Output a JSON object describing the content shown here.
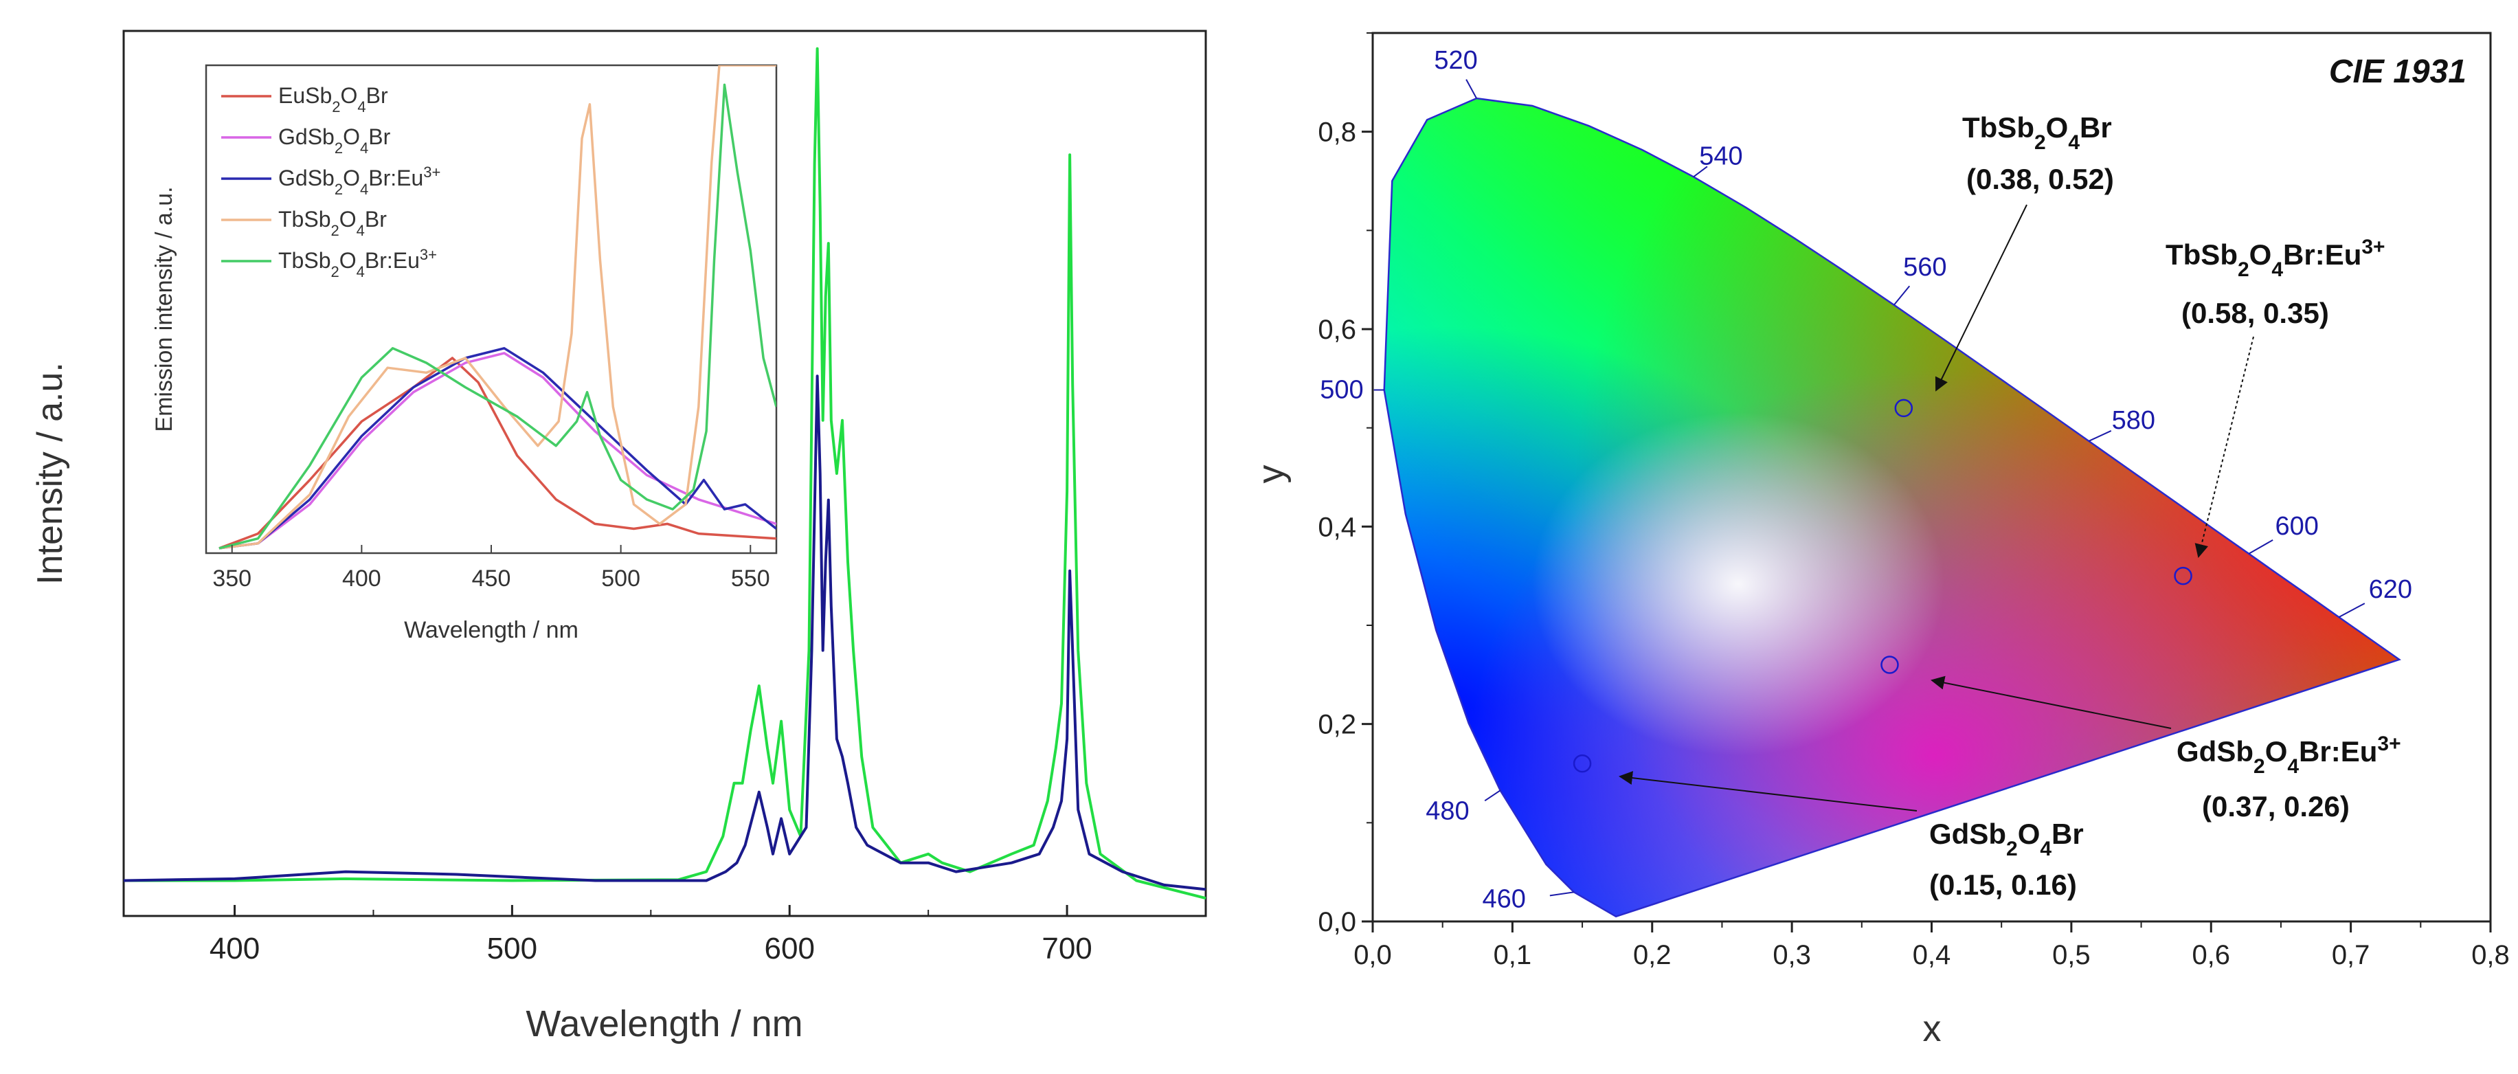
{
  "chart_data": [
    {
      "type": "line",
      "title": "",
      "xlabel": "Wavelength / nm",
      "ylabel": "Intensity / a.u.",
      "xlim": [
        360,
        750
      ],
      "ylim": [
        0,
        1.0
      ],
      "xticks": [
        "400",
        "500",
        "600",
        "700"
      ],
      "series": [
        {
          "name": "TbSb2O4Br:Eu3+ (main)",
          "color": "#22dd44",
          "points": [
            [
              360,
              0.04
            ],
            [
              400,
              0.04
            ],
            [
              440,
              0.042
            ],
            [
              500,
              0.04
            ],
            [
              560,
              0.041
            ],
            [
              570,
              0.05
            ],
            [
              576,
              0.09
            ],
            [
              580,
              0.15
            ],
            [
              583,
              0.15
            ],
            [
              586,
              0.21
            ],
            [
              589,
              0.26
            ],
            [
              592,
              0.19
            ],
            [
              594,
              0.15
            ],
            [
              597,
              0.22
            ],
            [
              600,
              0.12
            ],
            [
              604,
              0.09
            ],
            [
              607,
              0.3
            ],
            [
              609,
              0.85
            ],
            [
              610,
              0.98
            ],
            [
              611,
              0.8
            ],
            [
              612,
              0.56
            ],
            [
              613,
              0.7
            ],
            [
              614,
              0.76
            ],
            [
              615,
              0.56
            ],
            [
              617,
              0.5
            ],
            [
              619,
              0.56
            ],
            [
              621,
              0.4
            ],
            [
              623,
              0.3
            ],
            [
              626,
              0.18
            ],
            [
              630,
              0.1
            ],
            [
              640,
              0.06
            ],
            [
              650,
              0.07
            ],
            [
              655,
              0.06
            ],
            [
              665,
              0.05
            ],
            [
              680,
              0.07
            ],
            [
              688,
              0.08
            ],
            [
              693,
              0.13
            ],
            [
              696,
              0.19
            ],
            [
              698,
              0.24
            ],
            [
              700,
              0.48
            ],
            [
              701,
              0.86
            ],
            [
              702,
              0.6
            ],
            [
              704,
              0.3
            ],
            [
              707,
              0.15
            ],
            [
              712,
              0.07
            ],
            [
              725,
              0.04
            ],
            [
              750,
              0.02
            ]
          ]
        },
        {
          "name": "GdSb2O4Br:Eu3+ (main)",
          "color": "#1a1a8c",
          "points": [
            [
              360,
              0.04
            ],
            [
              400,
              0.042
            ],
            [
              440,
              0.05
            ],
            [
              480,
              0.047
            ],
            [
              530,
              0.04
            ],
            [
              570,
              0.04
            ],
            [
              577,
              0.05
            ],
            [
              581,
              0.06
            ],
            [
              584,
              0.08
            ],
            [
              589,
              0.14
            ],
            [
              592,
              0.1
            ],
            [
              594,
              0.07
            ],
            [
              597,
              0.11
            ],
            [
              600,
              0.07
            ],
            [
              606,
              0.1
            ],
            [
              608,
              0.3
            ],
            [
              610,
              0.61
            ],
            [
              611,
              0.5
            ],
            [
              612,
              0.3
            ],
            [
              613,
              0.4
            ],
            [
              614,
              0.47
            ],
            [
              615,
              0.35
            ],
            [
              617,
              0.2
            ],
            [
              619,
              0.18
            ],
            [
              621,
              0.15
            ],
            [
              624,
              0.1
            ],
            [
              628,
              0.08
            ],
            [
              640,
              0.06
            ],
            [
              650,
              0.06
            ],
            [
              660,
              0.05
            ],
            [
              680,
              0.06
            ],
            [
              690,
              0.07
            ],
            [
              695,
              0.1
            ],
            [
              698,
              0.13
            ],
            [
              700,
              0.2
            ],
            [
              701,
              0.39
            ],
            [
              702,
              0.3
            ],
            [
              704,
              0.12
            ],
            [
              708,
              0.07
            ],
            [
              720,
              0.05
            ],
            [
              735,
              0.035
            ],
            [
              750,
              0.03
            ]
          ]
        }
      ],
      "inset": {
        "type": "line",
        "xlabel": "Wavelength / nm",
        "ylabel": "Emission intensity / a.u.",
        "xlim": [
          340,
          560
        ],
        "ylim": [
          0,
          1.0
        ],
        "xticks": [
          "350",
          "400",
          "450",
          "500",
          "550"
        ],
        "legend": [
          "EuSb2O4Br",
          "GdSb2O4Br",
          "GdSb2O4Br:Eu3+",
          "TbSb2O4Br",
          "TbSb2O4Br:Eu3+"
        ],
        "series": [
          {
            "name": "EuSb2O4Br",
            "color": "#d9554a",
            "points": [
              [
                345,
                0.01
              ],
              [
                360,
                0.04
              ],
              [
                380,
                0.15
              ],
              [
                400,
                0.27
              ],
              [
                420,
                0.34
              ],
              [
                435,
                0.4
              ],
              [
                445,
                0.35
              ],
              [
                460,
                0.2
              ],
              [
                475,
                0.11
              ],
              [
                490,
                0.06
              ],
              [
                505,
                0.05
              ],
              [
                518,
                0.06
              ],
              [
                530,
                0.04
              ],
              [
                560,
                0.03
              ]
            ]
          },
          {
            "name": "GdSb2O4Br",
            "color": "#d966e6",
            "points": [
              [
                345,
                0.01
              ],
              [
                360,
                0.02
              ],
              [
                380,
                0.1
              ],
              [
                400,
                0.23
              ],
              [
                420,
                0.33
              ],
              [
                440,
                0.39
              ],
              [
                455,
                0.41
              ],
              [
                470,
                0.36
              ],
              [
                490,
                0.25
              ],
              [
                510,
                0.16
              ],
              [
                530,
                0.11
              ],
              [
                560,
                0.06
              ]
            ]
          },
          {
            "name": "GdSb2O4Br:Eu3+",
            "color": "#2a2ab0",
            "points": [
              [
                345,
                0.01
              ],
              [
                360,
                0.02
              ],
              [
                380,
                0.11
              ],
              [
                400,
                0.24
              ],
              [
                420,
                0.34
              ],
              [
                440,
                0.4
              ],
              [
                455,
                0.42
              ],
              [
                470,
                0.37
              ],
              [
                490,
                0.27
              ],
              [
                510,
                0.17
              ],
              [
                525,
                0.1
              ],
              [
                532,
                0.15
              ],
              [
                540,
                0.09
              ],
              [
                548,
                0.1
              ],
              [
                560,
                0.05
              ]
            ]
          },
          {
            "name": "TbSb2O4Br",
            "color": "#f0b98e",
            "points": [
              [
                345,
                0.01
              ],
              [
                360,
                0.02
              ],
              [
                380,
                0.12
              ],
              [
                395,
                0.28
              ],
              [
                410,
                0.38
              ],
              [
                425,
                0.37
              ],
              [
                440,
                0.4
              ],
              [
                455,
                0.3
              ],
              [
                468,
                0.22
              ],
              [
                476,
                0.27
              ],
              [
                481,
                0.45
              ],
              [
                485,
                0.85
              ],
              [
                488,
                0.92
              ],
              [
                492,
                0.6
              ],
              [
                497,
                0.3
              ],
              [
                505,
                0.1
              ],
              [
                515,
                0.06
              ],
              [
                525,
                0.1
              ],
              [
                530,
                0.3
              ],
              [
                535,
                0.8
              ],
              [
                538,
                1.0
              ],
              [
                560,
                1.0
              ]
            ]
          },
          {
            "name": "TbSb2O4Br:Eu3+",
            "color": "#44cc66",
            "points": [
              [
                345,
                0.01
              ],
              [
                360,
                0.03
              ],
              [
                380,
                0.18
              ],
              [
                400,
                0.36
              ],
              [
                412,
                0.42
              ],
              [
                425,
                0.39
              ],
              [
                440,
                0.34
              ],
              [
                460,
                0.28
              ],
              [
                475,
                0.22
              ],
              [
                483,
                0.27
              ],
              [
                487,
                0.33
              ],
              [
                492,
                0.24
              ],
              [
                500,
                0.15
              ],
              [
                510,
                0.11
              ],
              [
                520,
                0.09
              ],
              [
                528,
                0.13
              ],
              [
                533,
                0.25
              ],
              [
                536,
                0.6
              ],
              [
                540,
                0.96
              ],
              [
                545,
                0.78
              ],
              [
                550,
                0.62
              ],
              [
                555,
                0.4
              ],
              [
                560,
                0.3
              ]
            ]
          }
        ]
      }
    },
    {
      "type": "scatter",
      "title": "CIE 1931",
      "xlabel": "x",
      "ylabel": "y",
      "xlim": [
        0.0,
        0.8
      ],
      "ylim": [
        0.0,
        0.9
      ],
      "xticks": [
        "0,0",
        "0,1",
        "0,2",
        "0,3",
        "0,4",
        "0,5",
        "0,6",
        "0,7",
        "0,8"
      ],
      "yticks": [
        "0,0",
        "0,2",
        "0,4",
        "0,6",
        "0,8"
      ],
      "locus": [
        [
          0.1741,
          0.005
        ],
        [
          0.144,
          0.0297
        ],
        [
          0.1241,
          0.0578
        ],
        [
          0.0913,
          0.1327
        ],
        [
          0.0687,
          0.2007
        ],
        [
          0.0454,
          0.295
        ],
        [
          0.0235,
          0.4127
        ],
        [
          0.0082,
          0.5384
        ],
        [
          0.0139,
          0.7502
        ],
        [
          0.0389,
          0.812
        ],
        [
          0.0743,
          0.8338
        ],
        [
          0.1142,
          0.8262
        ],
        [
          0.1547,
          0.8059
        ],
        [
          0.1929,
          0.7816
        ],
        [
          0.2296,
          0.7543
        ],
        [
          0.2658,
          0.7243
        ],
        [
          0.3016,
          0.6923
        ],
        [
          0.3373,
          0.6589
        ],
        [
          0.3731,
          0.6245
        ],
        [
          0.4087,
          0.5896
        ],
        [
          0.4441,
          0.5547
        ],
        [
          0.4788,
          0.5202
        ],
        [
          0.5125,
          0.4866
        ],
        [
          0.5448,
          0.4544
        ],
        [
          0.5752,
          0.4242
        ],
        [
          0.6029,
          0.3965
        ],
        [
          0.627,
          0.3725
        ],
        [
          0.6482,
          0.3514
        ],
        [
          0.6658,
          0.334
        ],
        [
          0.6915,
          0.3083
        ],
        [
          0.7079,
          0.292
        ],
        [
          0.7347,
          0.2653
        ]
      ],
      "wavelength_labels": [
        {
          "nm": "460",
          "x": 0.144,
          "y": 0.0297
        },
        {
          "nm": "480",
          "x": 0.0913,
          "y": 0.1327
        },
        {
          "nm": "500",
          "x": 0.0082,
          "y": 0.5384
        },
        {
          "nm": "520",
          "x": 0.0743,
          "y": 0.8338
        },
        {
          "nm": "540",
          "x": 0.2296,
          "y": 0.7543
        },
        {
          "nm": "560",
          "x": 0.3731,
          "y": 0.6245
        },
        {
          "nm": "580",
          "x": 0.5125,
          "y": 0.4866
        },
        {
          "nm": "600",
          "x": 0.627,
          "y": 0.3725
        },
        {
          "nm": "620",
          "x": 0.6915,
          "y": 0.3083
        }
      ],
      "points": [
        {
          "label": "TbSb2O4Br",
          "coords": "(0.38, 0.52)",
          "x": 0.38,
          "y": 0.52
        },
        {
          "label": "TbSb2O4Br:Eu3+",
          "coords": "(0.58, 0.35)",
          "x": 0.58,
          "y": 0.35
        },
        {
          "label": "GdSb2O4Br:Eu3+",
          "coords": "(0.37, 0.26)",
          "x": 0.37,
          "y": 0.26
        },
        {
          "label": "GdSb2O4Br",
          "coords": "(0.15, 0.16)",
          "x": 0.15,
          "y": 0.16
        }
      ]
    }
  ]
}
